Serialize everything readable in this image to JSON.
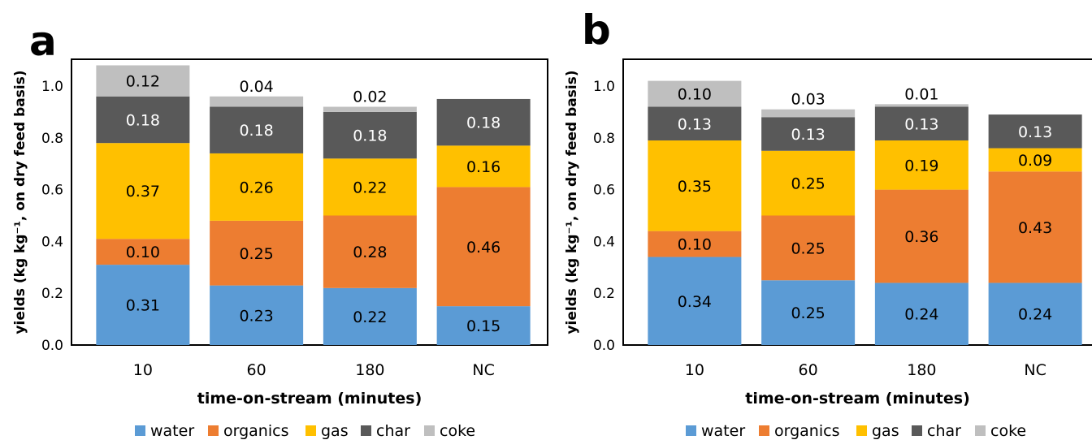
{
  "chart_data": [
    {
      "panel": "a",
      "type": "stacked-bar",
      "xlabel": "time-on-stream (minutes)",
      "ylabel": "yields (kg kg⁻¹, on dry feed basis)",
      "ylim": [
        0,
        1.0
      ],
      "yticks": [
        "0.0",
        "0.2",
        "0.4",
        "0.6",
        "0.8",
        "1.0"
      ],
      "categories": [
        "10",
        "60",
        "180",
        "NC"
      ],
      "legend_position": "bottom",
      "series": [
        {
          "name": "water",
          "color": "#5B9BD5",
          "values": [
            0.31,
            0.23,
            0.22,
            0.15
          ],
          "labels": [
            "0.31",
            "0.23",
            "0.22",
            "0.15"
          ]
        },
        {
          "name": "organics",
          "color": "#ED7D31",
          "values": [
            0.1,
            0.25,
            0.28,
            0.46
          ],
          "labels": [
            "0.10",
            "0.25",
            "0.28",
            "0.46"
          ]
        },
        {
          "name": "gas",
          "color": "#FFC000",
          "values": [
            0.37,
            0.26,
            0.22,
            0.16
          ],
          "labels": [
            "0.37",
            "0.26",
            "0.22",
            "0.16"
          ]
        },
        {
          "name": "char",
          "color": "#595959",
          "values": [
            0.18,
            0.18,
            0.18,
            0.18
          ],
          "labels": [
            "0.18",
            "0.18",
            "0.18",
            "0.18"
          ]
        },
        {
          "name": "coke",
          "color": "#BFBFBF",
          "values": [
            0.12,
            0.04,
            0.02,
            0.0
          ],
          "labels": [
            "0.12",
            "0.04",
            "0.02",
            ""
          ]
        }
      ]
    },
    {
      "panel": "b",
      "type": "stacked-bar",
      "xlabel": "time-on-stream (minutes)",
      "ylabel": "yields (kg kg⁻¹, on dry feed basis)",
      "ylim": [
        0,
        1.0
      ],
      "yticks": [
        "0.0",
        "0.2",
        "0.4",
        "0.6",
        "0.8",
        "1.0"
      ],
      "categories": [
        "10",
        "60",
        "180",
        "NC"
      ],
      "legend_position": "bottom",
      "series": [
        {
          "name": "water",
          "color": "#5B9BD5",
          "values": [
            0.34,
            0.25,
            0.24,
            0.24
          ],
          "labels": [
            "0.34",
            "0.25",
            "0.24",
            "0.24"
          ]
        },
        {
          "name": "organics",
          "color": "#ED7D31",
          "values": [
            0.1,
            0.25,
            0.36,
            0.43
          ],
          "labels": [
            "0.10",
            "0.25",
            "0.36",
            "0.43"
          ]
        },
        {
          "name": "gas",
          "color": "#FFC000",
          "values": [
            0.35,
            0.25,
            0.19,
            0.09
          ],
          "labels": [
            "0.35",
            "0.25",
            "0.19",
            "0.09"
          ]
        },
        {
          "name": "char",
          "color": "#595959",
          "values": [
            0.13,
            0.13,
            0.13,
            0.13
          ],
          "labels": [
            "0.13",
            "0.13",
            "0.13",
            "0.13"
          ]
        },
        {
          "name": "coke",
          "color": "#BFBFBF",
          "values": [
            0.1,
            0.03,
            0.01,
            0.0
          ],
          "labels": [
            "0.10",
            "0.03",
            "0.01",
            ""
          ]
        }
      ]
    }
  ]
}
